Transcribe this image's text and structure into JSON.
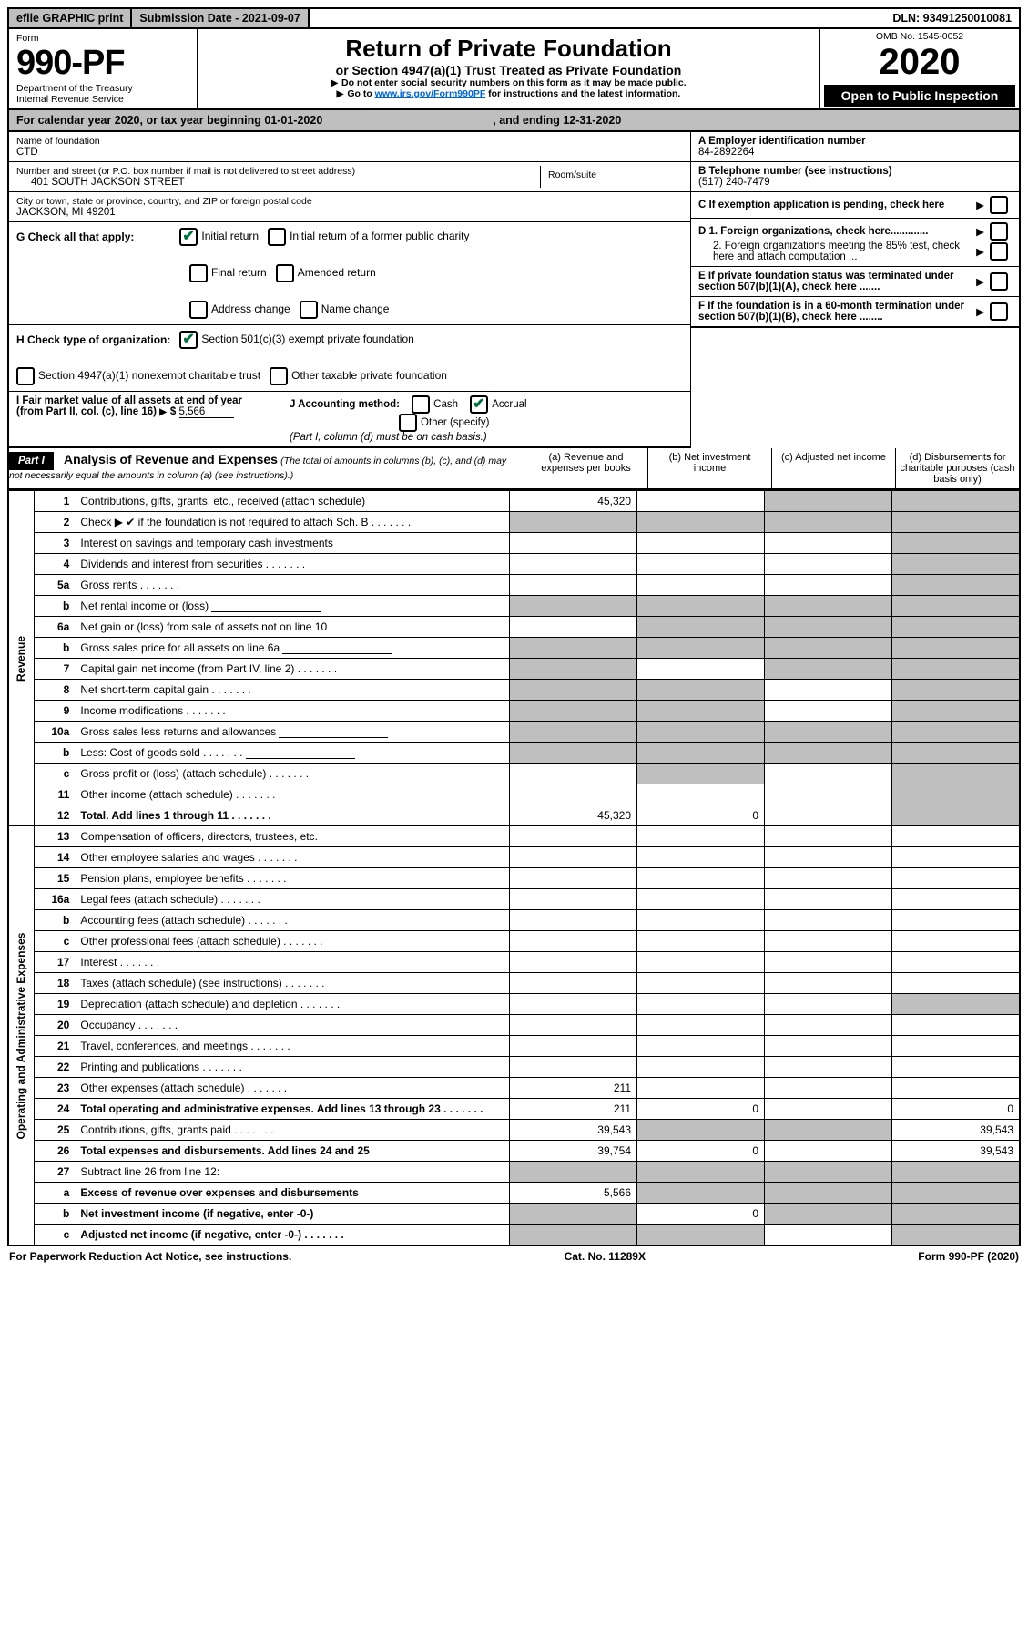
{
  "topbar": {
    "efile": "efile GRAPHIC print",
    "submission": "Submission Date - 2021-09-07",
    "dln": "DLN: 93491250010081"
  },
  "header": {
    "form_label": "Form",
    "form_number": "990-PF",
    "dept1": "Department of the Treasury",
    "dept2": "Internal Revenue Service",
    "title": "Return of Private Foundation",
    "subtitle": "or Section 4947(a)(1) Trust Treated as Private Foundation",
    "note1": "Do not enter social security numbers on this form as it may be made public.",
    "note2_pre": "Go to ",
    "note2_link": "www.irs.gov/Form990PF",
    "note2_post": " for instructions and the latest information.",
    "omb": "OMB No. 1545-0052",
    "year": "2020",
    "open": "Open to Public Inspection"
  },
  "calendar": {
    "text": "For calendar year 2020, or tax year beginning 01-01-2020",
    "end": ", and ending 12-31-2020"
  },
  "foundation": {
    "name_label": "Name of foundation",
    "name": "CTD",
    "addr_label": "Number and street (or P.O. box number if mail is not delivered to street address)",
    "addr": "401 SOUTH JACKSON STREET",
    "room_label": "Room/suite",
    "city_label": "City or town, state or province, country, and ZIP or foreign postal code",
    "city": "JACKSON, MI  49201",
    "ein_label": "A Employer identification number",
    "ein": "84-2892264",
    "phone_label": "B Telephone number (see instructions)",
    "phone": "(517) 240-7479",
    "c_label": "C  If exemption application is pending, check here",
    "d1": "D 1. Foreign organizations, check here.............",
    "d2": "2. Foreign organizations meeting the 85% test, check here and attach computation ...",
    "e": "E  If private foundation status was terminated under section 507(b)(1)(A), check here .......",
    "f": "F  If the foundation is in a 60-month termination under section 507(b)(1)(B), check here ........"
  },
  "checks": {
    "g_label": "G Check all that apply:",
    "initial": "Initial return",
    "initial_former": "Initial return of a former public charity",
    "final": "Final return",
    "amended": "Amended return",
    "addr_change": "Address change",
    "name_change": "Name change",
    "h_label": "H Check type of organization:",
    "h1": "Section 501(c)(3) exempt private foundation",
    "h2": "Section 4947(a)(1) nonexempt charitable trust",
    "h3": "Other taxable private foundation",
    "i_label": "I Fair market value of all assets at end of year (from Part II, col. (c), line 16)",
    "i_val": "5,566",
    "j_label": "J Accounting method:",
    "j_cash": "Cash",
    "j_accrual": "Accrual",
    "j_other": "Other (specify)",
    "j_note": "(Part I, column (d) must be on cash basis.)"
  },
  "part1": {
    "tag": "Part I",
    "title": "Analysis of Revenue and Expenses",
    "title_note": " (The total of amounts in columns (b), (c), and (d) may not necessarily equal the amounts in column (a) (see instructions).)",
    "col_a": "(a)   Revenue and expenses per books",
    "col_b": "(b)  Net investment income",
    "col_c": "(c)  Adjusted net income",
    "col_d": "(d)  Disbursements for charitable purposes (cash basis only)"
  },
  "sidelabels": {
    "revenue": "Revenue",
    "expenses": "Operating and Administrative Expenses"
  },
  "rows": [
    {
      "n": "1",
      "t": "Contributions, gifts, grants, etc., received (attach schedule)",
      "a": "45,320",
      "b": "",
      "c_shade": true,
      "d_shade": true
    },
    {
      "n": "2",
      "t": "Check ▶ ✔ if the foundation is not required to attach Sch. B",
      "dots": true,
      "a_shade": true,
      "b_shade": true,
      "c_shade": true,
      "d_shade": true
    },
    {
      "n": "3",
      "t": "Interest on savings and temporary cash investments",
      "a": "",
      "b": "",
      "c": "",
      "d_shade": true
    },
    {
      "n": "4",
      "t": "Dividends and interest from securities",
      "dots": true,
      "a": "",
      "b": "",
      "c": "",
      "d_shade": true
    },
    {
      "n": "5a",
      "t": "Gross rents",
      "dots": true,
      "a": "",
      "b": "",
      "c": "",
      "d_shade": true
    },
    {
      "n": "b",
      "t": "Net rental income or (loss)",
      "underline": true,
      "a_shade": true,
      "b_shade": true,
      "c_shade": true,
      "d_shade": true
    },
    {
      "n": "6a",
      "t": "Net gain or (loss) from sale of assets not on line 10",
      "a": "",
      "b_shade": true,
      "c_shade": true,
      "d_shade": true
    },
    {
      "n": "b",
      "t": "Gross sales price for all assets on line 6a",
      "underline": true,
      "a_shade": true,
      "b_shade": true,
      "c_shade": true,
      "d_shade": true
    },
    {
      "n": "7",
      "t": "Capital gain net income (from Part IV, line 2)",
      "dots": true,
      "a_shade": true,
      "b": "",
      "c_shade": true,
      "d_shade": true
    },
    {
      "n": "8",
      "t": "Net short-term capital gain",
      "dots": true,
      "a_shade": true,
      "b_shade": true,
      "c": "",
      "d_shade": true
    },
    {
      "n": "9",
      "t": "Income modifications",
      "dots": true,
      "a_shade": true,
      "b_shade": true,
      "c": "",
      "d_shade": true
    },
    {
      "n": "10a",
      "t": "Gross sales less returns and allowances",
      "underline": true,
      "a_shade": true,
      "b_shade": true,
      "c_shade": true,
      "d_shade": true
    },
    {
      "n": "b",
      "t": "Less: Cost of goods sold",
      "dots": true,
      "underline": true,
      "a_shade": true,
      "b_shade": true,
      "c_shade": true,
      "d_shade": true
    },
    {
      "n": "c",
      "t": "Gross profit or (loss) (attach schedule)",
      "dots": true,
      "a": "",
      "b_shade": true,
      "c": "",
      "d_shade": true
    },
    {
      "n": "11",
      "t": "Other income (attach schedule)",
      "dots": true,
      "a": "",
      "b": "",
      "c": "",
      "d_shade": true
    },
    {
      "n": "12",
      "t": "Total. Add lines 1 through 11",
      "bold": true,
      "dots": true,
      "a": "45,320",
      "b": "0",
      "c": "",
      "d_shade": true
    },
    {
      "n": "13",
      "t": "Compensation of officers, directors, trustees, etc.",
      "a": "",
      "b": "",
      "c": "",
      "d": ""
    },
    {
      "n": "14",
      "t": "Other employee salaries and wages",
      "dots": true,
      "a": "",
      "b": "",
      "c": "",
      "d": ""
    },
    {
      "n": "15",
      "t": "Pension plans, employee benefits",
      "dots": true,
      "a": "",
      "b": "",
      "c": "",
      "d": ""
    },
    {
      "n": "16a",
      "t": "Legal fees (attach schedule)",
      "dots": true,
      "a": "",
      "b": "",
      "c": "",
      "d": ""
    },
    {
      "n": "b",
      "t": "Accounting fees (attach schedule)",
      "dots": true,
      "a": "",
      "b": "",
      "c": "",
      "d": ""
    },
    {
      "n": "c",
      "t": "Other professional fees (attach schedule)",
      "dots": true,
      "a": "",
      "b": "",
      "c": "",
      "d": ""
    },
    {
      "n": "17",
      "t": "Interest",
      "dots": true,
      "a": "",
      "b": "",
      "c": "",
      "d": ""
    },
    {
      "n": "18",
      "t": "Taxes (attach schedule) (see instructions)",
      "dots": true,
      "a": "",
      "b": "",
      "c": "",
      "d": ""
    },
    {
      "n": "19",
      "t": "Depreciation (attach schedule) and depletion",
      "dots": true,
      "a": "",
      "b": "",
      "c": "",
      "d_shade": true
    },
    {
      "n": "20",
      "t": "Occupancy",
      "dots": true,
      "a": "",
      "b": "",
      "c": "",
      "d": ""
    },
    {
      "n": "21",
      "t": "Travel, conferences, and meetings",
      "dots": true,
      "a": "",
      "b": "",
      "c": "",
      "d": ""
    },
    {
      "n": "22",
      "t": "Printing and publications",
      "dots": true,
      "a": "",
      "b": "",
      "c": "",
      "d": ""
    },
    {
      "n": "23",
      "t": "Other expenses (attach schedule)",
      "dots": true,
      "a": "211",
      "b": "",
      "c": "",
      "d": ""
    },
    {
      "n": "24",
      "t": "Total operating and administrative expenses. Add lines 13 through 23",
      "bold": true,
      "dots": true,
      "a": "211",
      "b": "0",
      "c": "",
      "d": "0"
    },
    {
      "n": "25",
      "t": "Contributions, gifts, grants paid",
      "dots": true,
      "a": "39,543",
      "b_shade": true,
      "c_shade": true,
      "d": "39,543"
    },
    {
      "n": "26",
      "t": "Total expenses and disbursements. Add lines 24 and 25",
      "bold": true,
      "a": "39,754",
      "b": "0",
      "c": "",
      "d": "39,543"
    },
    {
      "n": "27",
      "t": "Subtract line 26 from line 12:",
      "a_shade": true,
      "b_shade": true,
      "c_shade": true,
      "d_shade": true
    },
    {
      "n": "a",
      "t": "Excess of revenue over expenses and disbursements",
      "bold": true,
      "a": "5,566",
      "b_shade": true,
      "c_shade": true,
      "d_shade": true
    },
    {
      "n": "b",
      "t": "Net investment income (if negative, enter -0-)",
      "bold": true,
      "a_shade": true,
      "b": "0",
      "c_shade": true,
      "d_shade": true
    },
    {
      "n": "c",
      "t": "Adjusted net income (if negative, enter -0-)",
      "bold": true,
      "dots": true,
      "a_shade": true,
      "b_shade": true,
      "c": "",
      "d_shade": true
    }
  ],
  "footer": {
    "left": "For Paperwork Reduction Act Notice, see instructions.",
    "mid": "Cat. No. 11289X",
    "right": "Form 990-PF (2020)"
  }
}
